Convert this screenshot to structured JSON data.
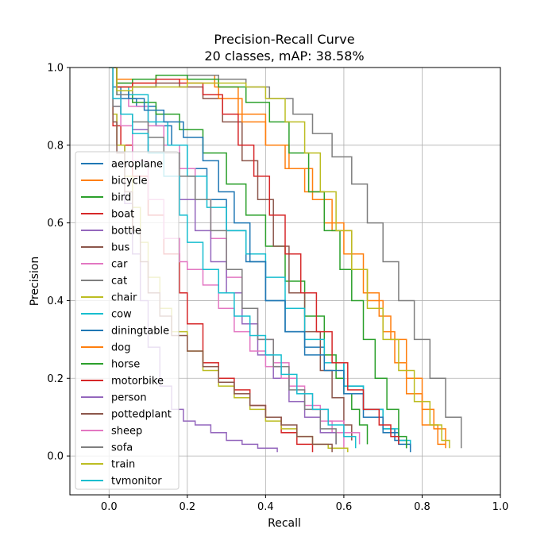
{
  "chart_data": {
    "type": "line",
    "title": "Precision-Recall Curve",
    "subtitle": "20 classes, mAP: 38.58%",
    "xlabel": "Recall",
    "ylabel": "Precision",
    "xlim": [
      -0.1,
      1.0
    ],
    "ylim": [
      -0.1,
      1.0
    ],
    "xticks": [
      {
        "value": 0.0,
        "label": "0.0"
      },
      {
        "value": 0.2,
        "label": "0.2"
      },
      {
        "value": 0.4,
        "label": "0.4"
      },
      {
        "value": 0.6,
        "label": "0.6"
      },
      {
        "value": 0.8,
        "label": "0.8"
      },
      {
        "value": 1.0,
        "label": "1.0"
      }
    ],
    "yticks": [
      {
        "value": 0.0,
        "label": "0.0"
      },
      {
        "value": 0.2,
        "label": "0.2"
      },
      {
        "value": 0.4,
        "label": "0.4"
      },
      {
        "value": 0.6,
        "label": "0.6"
      },
      {
        "value": 0.8,
        "label": "0.8"
      },
      {
        "value": 1.0,
        "label": "1.0"
      }
    ],
    "grid": true,
    "legend_position": "left",
    "series": [
      {
        "name": "aeroplane",
        "color": "#1f77b4",
        "x": [
          0.0,
          0.002,
          0.01,
          0.03,
          0.07,
          0.12,
          0.16,
          0.2,
          0.25,
          0.3,
          0.35,
          0.4,
          0.45,
          0.5,
          0.55,
          0.6,
          0.65,
          0.7,
          0.73,
          0.76
        ],
        "y": [
          1.0,
          1.0,
          0.95,
          0.92,
          0.9,
          0.85,
          0.8,
          0.74,
          0.66,
          0.58,
          0.5,
          0.4,
          0.32,
          0.28,
          0.24,
          0.18,
          0.12,
          0.07,
          0.04,
          0.02
        ]
      },
      {
        "name": "bicycle",
        "color": "#ff7f0e",
        "x": [
          0.0,
          0.005,
          0.02,
          0.06,
          0.12,
          0.2,
          0.27,
          0.33,
          0.4,
          0.45,
          0.5,
          0.55,
          0.6,
          0.65,
          0.69,
          0.72,
          0.76,
          0.8,
          0.83,
          0.86
        ],
        "y": [
          1.0,
          1.0,
          0.97,
          0.97,
          0.98,
          0.98,
          0.95,
          0.88,
          0.8,
          0.74,
          0.68,
          0.6,
          0.52,
          0.42,
          0.36,
          0.3,
          0.2,
          0.12,
          0.07,
          0.03
        ]
      },
      {
        "name": "bird",
        "color": "#2ca02c",
        "x": [
          0.0,
          0.005,
          0.02,
          0.06,
          0.12,
          0.18,
          0.24,
          0.3,
          0.35,
          0.4,
          0.45,
          0.5,
          0.55,
          0.58,
          0.6,
          0.62,
          0.64,
          0.66
        ],
        "y": [
          1.0,
          1.0,
          0.93,
          0.91,
          0.88,
          0.84,
          0.78,
          0.7,
          0.62,
          0.54,
          0.45,
          0.36,
          0.26,
          0.2,
          0.16,
          0.12,
          0.08,
          0.03
        ]
      },
      {
        "name": "boat",
        "color": "#d62728",
        "x": [
          0.0,
          0.003,
          0.01,
          0.03,
          0.06,
          0.1,
          0.14,
          0.18,
          0.2,
          0.24,
          0.28,
          0.32,
          0.36,
          0.4,
          0.44,
          0.48,
          0.52
        ],
        "y": [
          1.0,
          1.0,
          0.85,
          0.8,
          0.72,
          0.62,
          0.52,
          0.42,
          0.34,
          0.24,
          0.2,
          0.17,
          0.13,
          0.1,
          0.06,
          0.03,
          0.01
        ]
      },
      {
        "name": "bottle",
        "color": "#9467bd",
        "x": [
          0.0,
          0.003,
          0.01,
          0.02,
          0.04,
          0.06,
          0.08,
          0.1,
          0.13,
          0.16,
          0.19,
          0.22,
          0.26,
          0.3,
          0.34,
          0.38,
          0.43
        ],
        "y": [
          1.0,
          1.0,
          0.88,
          0.8,
          0.65,
          0.52,
          0.4,
          0.28,
          0.18,
          0.12,
          0.09,
          0.08,
          0.06,
          0.04,
          0.03,
          0.02,
          0.01
        ]
      },
      {
        "name": "bus",
        "color": "#8c564b",
        "x": [
          0.0,
          0.005,
          0.02,
          0.06,
          0.12,
          0.18,
          0.24,
          0.29,
          0.34,
          0.38,
          0.42,
          0.46,
          0.5,
          0.54,
          0.57,
          0.6,
          0.62
        ],
        "y": [
          1.0,
          1.0,
          0.96,
          0.95,
          0.96,
          0.95,
          0.92,
          0.86,
          0.76,
          0.66,
          0.54,
          0.42,
          0.32,
          0.22,
          0.15,
          0.08,
          0.04
        ]
      },
      {
        "name": "car",
        "color": "#e377c2",
        "x": [
          0.0,
          0.005,
          0.02,
          0.05,
          0.1,
          0.14,
          0.18,
          0.22,
          0.26,
          0.3,
          0.34,
          0.38,
          0.42,
          0.46,
          0.5,
          0.54,
          0.57,
          0.6
        ],
        "y": [
          1.0,
          1.0,
          0.94,
          0.9,
          0.85,
          0.8,
          0.74,
          0.66,
          0.56,
          0.46,
          0.38,
          0.3,
          0.24,
          0.18,
          0.13,
          0.09,
          0.06,
          0.02
        ]
      },
      {
        "name": "cat",
        "color": "#7f7f7f",
        "x": [
          0.0,
          0.005,
          0.02,
          0.06,
          0.12,
          0.2,
          0.28,
          0.35,
          0.41,
          0.47,
          0.52,
          0.57,
          0.62,
          0.66,
          0.7,
          0.74,
          0.78,
          0.82,
          0.86,
          0.9
        ],
        "y": [
          1.0,
          1.0,
          0.93,
          0.95,
          0.97,
          0.98,
          0.97,
          0.95,
          0.92,
          0.88,
          0.83,
          0.77,
          0.7,
          0.6,
          0.5,
          0.4,
          0.3,
          0.2,
          0.1,
          0.02
        ]
      },
      {
        "name": "chair",
        "color": "#bcbd22",
        "x": [
          0.0,
          0.003,
          0.01,
          0.02,
          0.04,
          0.06,
          0.08,
          0.1,
          0.13,
          0.16,
          0.2,
          0.24,
          0.28,
          0.32,
          0.36,
          0.4,
          0.44,
          0.48,
          0.52,
          0.56,
          0.61
        ],
        "y": [
          1.0,
          1.0,
          0.88,
          0.8,
          0.72,
          0.64,
          0.55,
          0.46,
          0.38,
          0.32,
          0.27,
          0.22,
          0.18,
          0.15,
          0.12,
          0.09,
          0.07,
          0.05,
          0.03,
          0.02,
          0.01
        ]
      },
      {
        "name": "cow",
        "color": "#17becf",
        "x": [
          0.0,
          0.005,
          0.02,
          0.05,
          0.1,
          0.15,
          0.2,
          0.25,
          0.3,
          0.35,
          0.4,
          0.45,
          0.5,
          0.55,
          0.6,
          0.65,
          0.7,
          0.74,
          0.77
        ],
        "y": [
          1.0,
          1.0,
          0.95,
          0.93,
          0.86,
          0.8,
          0.72,
          0.64,
          0.58,
          0.52,
          0.46,
          0.38,
          0.3,
          0.24,
          0.18,
          0.12,
          0.07,
          0.04,
          0.02
        ]
      },
      {
        "name": "diningtable",
        "color": "#1f77b4",
        "x": [
          0.0,
          0.005,
          0.02,
          0.05,
          0.09,
          0.14,
          0.19,
          0.24,
          0.28,
          0.32,
          0.36,
          0.4,
          0.45,
          0.5,
          0.55,
          0.6,
          0.65,
          0.7,
          0.74,
          0.77
        ],
        "y": [
          1.0,
          1.0,
          0.94,
          0.92,
          0.89,
          0.86,
          0.82,
          0.76,
          0.68,
          0.6,
          0.5,
          0.4,
          0.32,
          0.26,
          0.22,
          0.16,
          0.1,
          0.06,
          0.03,
          0.01
        ]
      },
      {
        "name": "dog",
        "color": "#ff7f0e",
        "x": [
          0.0,
          0.005,
          0.02,
          0.06,
          0.12,
          0.2,
          0.28,
          0.34,
          0.4,
          0.46,
          0.52,
          0.57,
          0.62,
          0.66,
          0.7,
          0.73,
          0.76,
          0.8,
          0.84,
          0.86
        ],
        "y": [
          1.0,
          1.0,
          0.95,
          0.96,
          0.97,
          0.96,
          0.92,
          0.86,
          0.8,
          0.74,
          0.66,
          0.58,
          0.48,
          0.4,
          0.32,
          0.24,
          0.16,
          0.08,
          0.03,
          0.02
        ]
      },
      {
        "name": "horse",
        "color": "#2ca02c",
        "x": [
          0.0,
          0.005,
          0.02,
          0.06,
          0.12,
          0.2,
          0.28,
          0.35,
          0.41,
          0.46,
          0.51,
          0.55,
          0.59,
          0.62,
          0.65,
          0.68,
          0.71,
          0.74,
          0.76
        ],
        "y": [
          1.0,
          1.0,
          0.96,
          0.97,
          0.98,
          0.97,
          0.95,
          0.91,
          0.86,
          0.78,
          0.68,
          0.58,
          0.48,
          0.4,
          0.3,
          0.2,
          0.12,
          0.05,
          0.02
        ]
      },
      {
        "name": "motorbike",
        "color": "#d62728",
        "x": [
          0.0,
          0.005,
          0.02,
          0.06,
          0.12,
          0.18,
          0.24,
          0.29,
          0.33,
          0.37,
          0.41,
          0.45,
          0.49,
          0.53,
          0.57,
          0.61,
          0.65,
          0.69,
          0.72,
          0.74
        ],
        "y": [
          1.0,
          1.0,
          0.95,
          0.96,
          0.97,
          0.96,
          0.93,
          0.88,
          0.8,
          0.72,
          0.62,
          0.52,
          0.42,
          0.32,
          0.24,
          0.17,
          0.12,
          0.08,
          0.05,
          0.03
        ]
      },
      {
        "name": "person",
        "color": "#9467bd",
        "x": [
          0.0,
          0.004,
          0.01,
          0.03,
          0.06,
          0.1,
          0.14,
          0.18,
          0.22,
          0.26,
          0.3,
          0.34,
          0.38,
          0.42,
          0.46,
          0.5,
          0.54,
          0.58
        ],
        "y": [
          1.0,
          1.0,
          0.9,
          0.88,
          0.84,
          0.78,
          0.72,
          0.66,
          0.58,
          0.5,
          0.42,
          0.34,
          0.26,
          0.2,
          0.14,
          0.1,
          0.06,
          0.03
        ]
      },
      {
        "name": "pottedplant",
        "color": "#8c564b",
        "x": [
          0.0,
          0.003,
          0.01,
          0.02,
          0.04,
          0.06,
          0.08,
          0.1,
          0.13,
          0.16,
          0.2,
          0.24,
          0.28,
          0.32,
          0.36,
          0.4,
          0.44,
          0.48,
          0.52,
          0.57
        ],
        "y": [
          1.0,
          1.0,
          0.86,
          0.78,
          0.68,
          0.58,
          0.5,
          0.42,
          0.36,
          0.31,
          0.27,
          0.23,
          0.19,
          0.16,
          0.13,
          0.1,
          0.08,
          0.05,
          0.03,
          0.01
        ]
      },
      {
        "name": "sheep",
        "color": "#e377c2",
        "x": [
          0.0,
          0.004,
          0.01,
          0.03,
          0.06,
          0.1,
          0.14,
          0.18,
          0.2,
          0.24,
          0.28,
          0.32,
          0.36,
          0.4,
          0.44,
          0.48,
          0.52,
          0.56,
          0.6,
          0.64
        ],
        "y": [
          1.0,
          1.0,
          0.92,
          0.85,
          0.76,
          0.66,
          0.56,
          0.5,
          0.48,
          0.44,
          0.38,
          0.32,
          0.27,
          0.23,
          0.2,
          0.16,
          0.12,
          0.09,
          0.06,
          0.03
        ]
      },
      {
        "name": "sofa",
        "color": "#7f7f7f",
        "x": [
          0.0,
          0.004,
          0.01,
          0.03,
          0.06,
          0.1,
          0.14,
          0.18,
          0.22,
          0.26,
          0.3,
          0.34,
          0.38,
          0.42,
          0.46,
          0.5,
          0.54,
          0.58
        ],
        "y": [
          1.0,
          1.0,
          0.9,
          0.88,
          0.86,
          0.82,
          0.78,
          0.72,
          0.66,
          0.58,
          0.48,
          0.38,
          0.3,
          0.23,
          0.17,
          0.12,
          0.07,
          0.03
        ]
      },
      {
        "name": "train",
        "color": "#bcbd22",
        "x": [
          0.0,
          0.005,
          0.02,
          0.06,
          0.12,
          0.2,
          0.28,
          0.35,
          0.4,
          0.45,
          0.5,
          0.54,
          0.58,
          0.62,
          0.66,
          0.7,
          0.74,
          0.78,
          0.82,
          0.85,
          0.87
        ],
        "y": [
          1.0,
          1.0,
          0.94,
          0.95,
          0.95,
          0.96,
          0.96,
          0.95,
          0.92,
          0.86,
          0.78,
          0.68,
          0.58,
          0.48,
          0.38,
          0.3,
          0.22,
          0.14,
          0.08,
          0.04,
          0.02
        ]
      },
      {
        "name": "tvmonitor",
        "color": "#17becf",
        "x": [
          0.0,
          0.004,
          0.01,
          0.03,
          0.06,
          0.1,
          0.14,
          0.18,
          0.2,
          0.24,
          0.28,
          0.32,
          0.36,
          0.4,
          0.44,
          0.48,
          0.52,
          0.56,
          0.6,
          0.63
        ],
        "y": [
          1.0,
          1.0,
          0.92,
          0.88,
          0.83,
          0.78,
          0.72,
          0.62,
          0.55,
          0.48,
          0.42,
          0.36,
          0.31,
          0.26,
          0.21,
          0.16,
          0.12,
          0.08,
          0.05,
          0.02
        ]
      }
    ]
  }
}
